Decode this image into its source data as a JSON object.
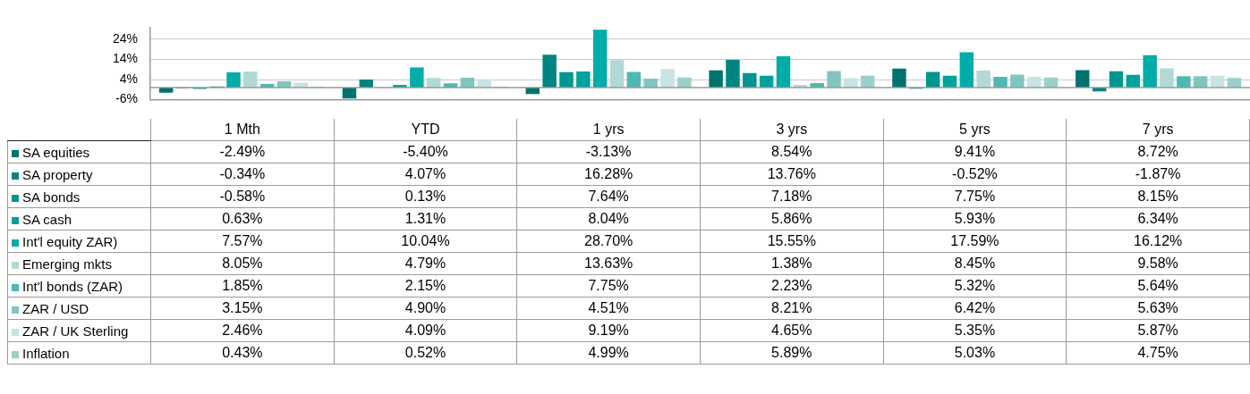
{
  "chart_data": {
    "type": "bar",
    "categories": [
      "1 Mth",
      "YTD",
      "1 yrs",
      "3 yrs",
      "5 yrs",
      "7 yrs"
    ],
    "ylim": [
      -6,
      30
    ],
    "yticks": [
      {
        "value": -6,
        "label": "-6%"
      },
      {
        "value": 4,
        "label": "4%"
      },
      {
        "value": 14,
        "label": "14%"
      },
      {
        "value": 24,
        "label": "24%"
      }
    ],
    "grid": "y",
    "legend": "left",
    "series": [
      {
        "name": "SA equities",
        "color": "#00736f",
        "values": [
          -2.49,
          -5.4,
          -3.13,
          8.54,
          9.41,
          8.72
        ],
        "value_labels": [
          "-2.49%",
          "-5.40%",
          "-3.13%",
          "8.54%",
          "9.41%",
          "8.72%"
        ]
      },
      {
        "name": "SA property",
        "color": "#00847f",
        "values": [
          -0.34,
          4.07,
          16.28,
          13.76,
          -0.52,
          -1.87
        ],
        "value_labels": [
          "-0.34%",
          "4.07%",
          "16.28%",
          "13.76%",
          "-0.52%",
          "-1.87%"
        ]
      },
      {
        "name": "SA bonds",
        "color": "#00958f",
        "values": [
          -0.58,
          0.13,
          7.64,
          7.18,
          7.75,
          8.15
        ],
        "value_labels": [
          "-0.58%",
          "0.13%",
          "7.64%",
          "7.18%",
          "7.75%",
          "8.15%"
        ]
      },
      {
        "name": "SA cash",
        "color": "#00a29c",
        "values": [
          0.63,
          1.31,
          8.04,
          5.86,
          5.93,
          6.34
        ],
        "value_labels": [
          "0.63%",
          "1.31%",
          "8.04%",
          "5.86%",
          "5.93%",
          "6.34%"
        ]
      },
      {
        "name": "Int'l equity ZAR)",
        "color": "#00aca7",
        "values": [
          7.57,
          10.04,
          28.7,
          15.55,
          17.59,
          16.12
        ],
        "value_labels": [
          "7.57%",
          "10.04%",
          "28.70%",
          "15.55%",
          "17.59%",
          "16.12%"
        ]
      },
      {
        "name": "Emerging mkts",
        "color": "#b2d9d7",
        "values": [
          8.05,
          4.79,
          13.63,
          1.38,
          8.45,
          9.58
        ],
        "value_labels": [
          "8.05%",
          "4.79%",
          "13.63%",
          "1.38%",
          "8.45%",
          "9.58%"
        ]
      },
      {
        "name": "Int'l bonds (ZAR)",
        "color": "#4db9b4",
        "values": [
          1.85,
          2.15,
          7.75,
          2.23,
          5.32,
          5.64
        ],
        "value_labels": [
          "1.85%",
          "2.15%",
          "7.75%",
          "2.23%",
          "5.32%",
          "5.64%"
        ]
      },
      {
        "name": "ZAR / USD",
        "color": "#7fc6c1",
        "values": [
          3.15,
          4.9,
          4.51,
          8.21,
          6.42,
          5.63
        ],
        "value_labels": [
          "3.15%",
          "4.90%",
          "4.51%",
          "8.21%",
          "6.42%",
          "5.63%"
        ]
      },
      {
        "name": "ZAR / UK Sterling",
        "color": "#c7e3e2",
        "values": [
          2.46,
          4.09,
          9.19,
          4.65,
          5.35,
          5.87
        ],
        "value_labels": [
          "2.46%",
          "4.09%",
          "9.19%",
          "4.65%",
          "5.35%",
          "5.87%"
        ]
      },
      {
        "name": "Inflation",
        "color": "#99d0cc",
        "values": [
          0.43,
          0.52,
          4.99,
          5.89,
          5.03,
          4.75
        ],
        "value_labels": [
          "0.43%",
          "0.52%",
          "4.99%",
          "5.89%",
          "5.03%",
          "4.75%"
        ]
      }
    ]
  }
}
